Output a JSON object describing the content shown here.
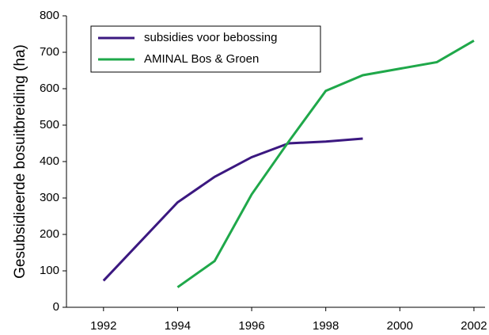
{
  "chart_data": {
    "type": "line",
    "ylabel": "Gesubsidieerde bosuitbreiding (ha)",
    "series": [
      {
        "name": "subsidies voor bebossing",
        "color": "#3b1880",
        "x": [
          1992,
          1994,
          1995,
          1996,
          1997,
          1998,
          1999
        ],
        "values": [
          73,
          288,
          358,
          412,
          450,
          455,
          463
        ]
      },
      {
        "name": "AMINAL Bos & Groen",
        "color": "#1fa84a",
        "x": [
          1994,
          1995,
          1996,
          1997,
          1998,
          1999,
          2001,
          2002
        ],
        "values": [
          55,
          127,
          310,
          455,
          594,
          637,
          673,
          732
        ]
      }
    ],
    "xlim": [
      1991,
      2002.3
    ],
    "xticks": [
      1992,
      1994,
      1996,
      1998,
      2000,
      2002
    ],
    "ylim": [
      0,
      800
    ],
    "yticks": [
      0,
      100,
      200,
      300,
      400,
      500,
      600,
      700,
      800
    ],
    "legend": "upper left"
  }
}
